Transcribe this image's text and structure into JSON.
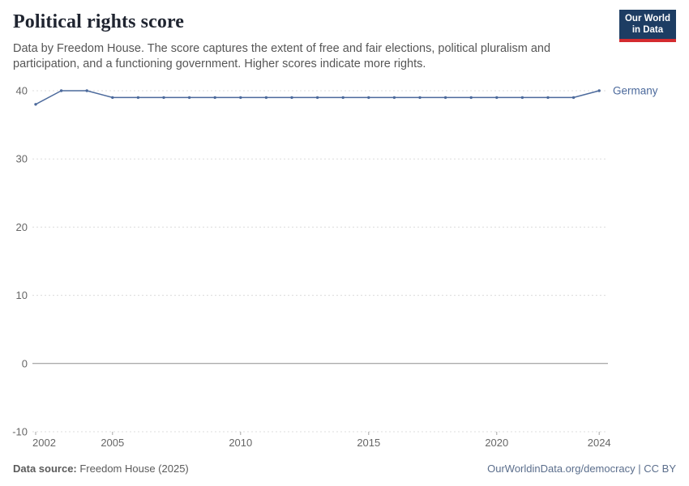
{
  "header": {
    "title": "Political rights score",
    "subtitle": "Data by Freedom House. The score captures the extent of free and fair elections, political pluralism and participation, and a functioning government. Higher scores indicate more rights.",
    "logo": {
      "line1": "Our World",
      "line2": "in Data"
    }
  },
  "chart_data": {
    "type": "line",
    "title": "Political rights score",
    "subtitle": "Data by Freedom House. The score captures the extent of free and fair elections, political pluralism and participation, and a functioning government. Higher scores indicate more rights.",
    "x": [
      2002,
      2003,
      2004,
      2005,
      2006,
      2007,
      2008,
      2009,
      2010,
      2011,
      2012,
      2013,
      2014,
      2015,
      2016,
      2017,
      2018,
      2019,
      2020,
      2021,
      2022,
      2023,
      2024
    ],
    "series": [
      {
        "name": "Germany",
        "color": "#4c6a9c",
        "values": [
          38,
          40,
          40,
          39,
          39,
          39,
          39,
          39,
          39,
          39,
          39,
          39,
          39,
          39,
          39,
          39,
          39,
          39,
          39,
          39,
          39,
          39,
          40
        ]
      }
    ],
    "ylim": [
      -10,
      40
    ],
    "yticks": [
      -10,
      0,
      10,
      20,
      30,
      40
    ],
    "xticks": [
      2002,
      2005,
      2010,
      2015,
      2020,
      2024
    ],
    "grid": "horizontal-dashed",
    "zero_line": "solid",
    "legend": "line-end-label"
  },
  "footer": {
    "source_label": "Data source:",
    "source_value": " Freedom House (2025)",
    "link": "OurWorldinData.org/democracy | CC BY"
  }
}
